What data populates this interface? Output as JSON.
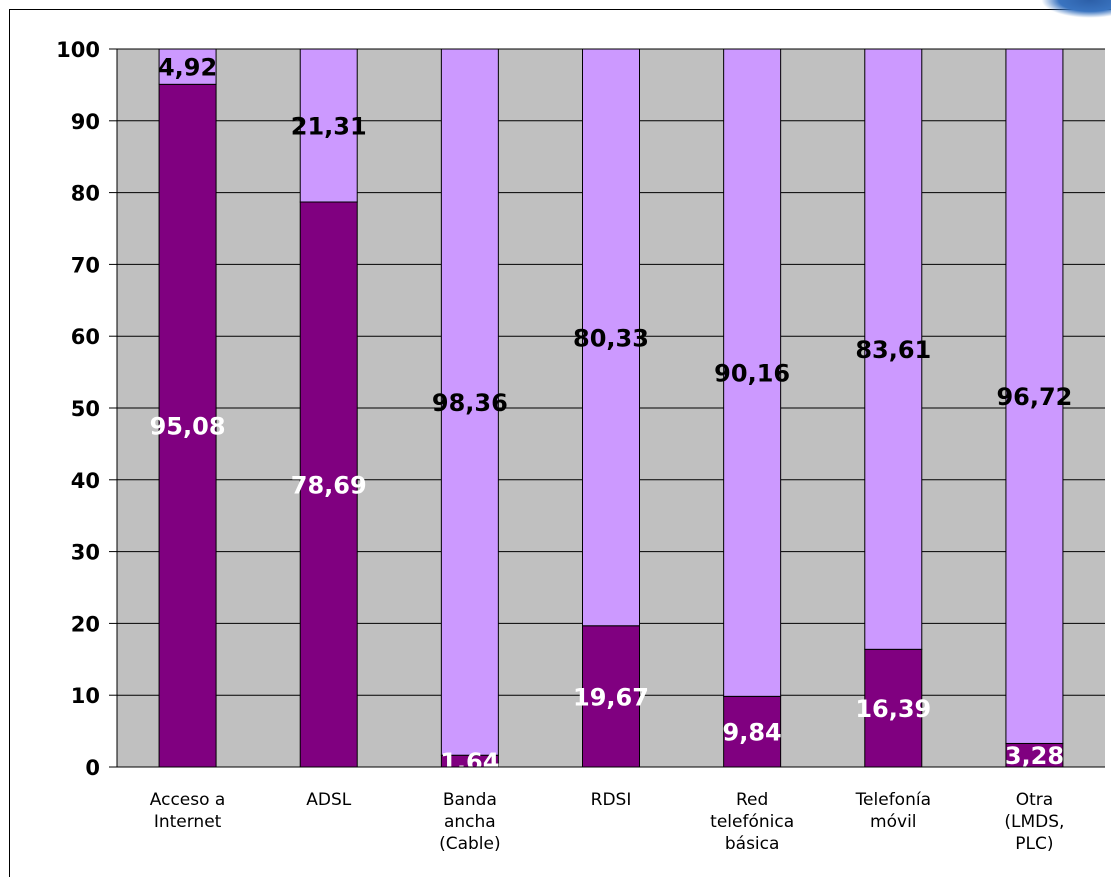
{
  "chart_data": {
    "type": "bar",
    "stacked": true,
    "categories": [
      [
        "Acceso a",
        "Internet"
      ],
      [
        "ADSL"
      ],
      [
        "Banda",
        "ancha",
        "(Cable)"
      ],
      [
        "RDSI"
      ],
      [
        "Red",
        "telefónica",
        "básica"
      ],
      [
        "Telefonía",
        "móvil"
      ],
      [
        "Otra",
        "(LMDS,",
        "PLC)"
      ]
    ],
    "series": [
      {
        "values": [
          95.08,
          78.69,
          1.64,
          19.67,
          9.84,
          16.39,
          3.28
        ],
        "labels": [
          "95,08",
          "78,69",
          "1,64",
          "19,67",
          "9,84",
          "16,39",
          "3,28"
        ],
        "color": "#800080",
        "label_color": "#ffffff"
      },
      {
        "values": [
          4.92,
          21.31,
          98.36,
          80.33,
          90.16,
          83.61,
          96.72
        ],
        "labels": [
          "4,92",
          "21,31",
          "98,36",
          "80,33",
          "90,16",
          "83,61",
          "96,72"
        ],
        "color": "#cc99ff",
        "label_color": "#000000"
      }
    ],
    "ylim": [
      0,
      100
    ],
    "yticks": [
      "0",
      "10",
      "20",
      "30",
      "40",
      "50",
      "60",
      "70",
      "80",
      "90",
      "100"
    ],
    "plot_background": "#c0c0c0",
    "grid": true,
    "title": "",
    "xlabel": "",
    "ylabel": ""
  }
}
